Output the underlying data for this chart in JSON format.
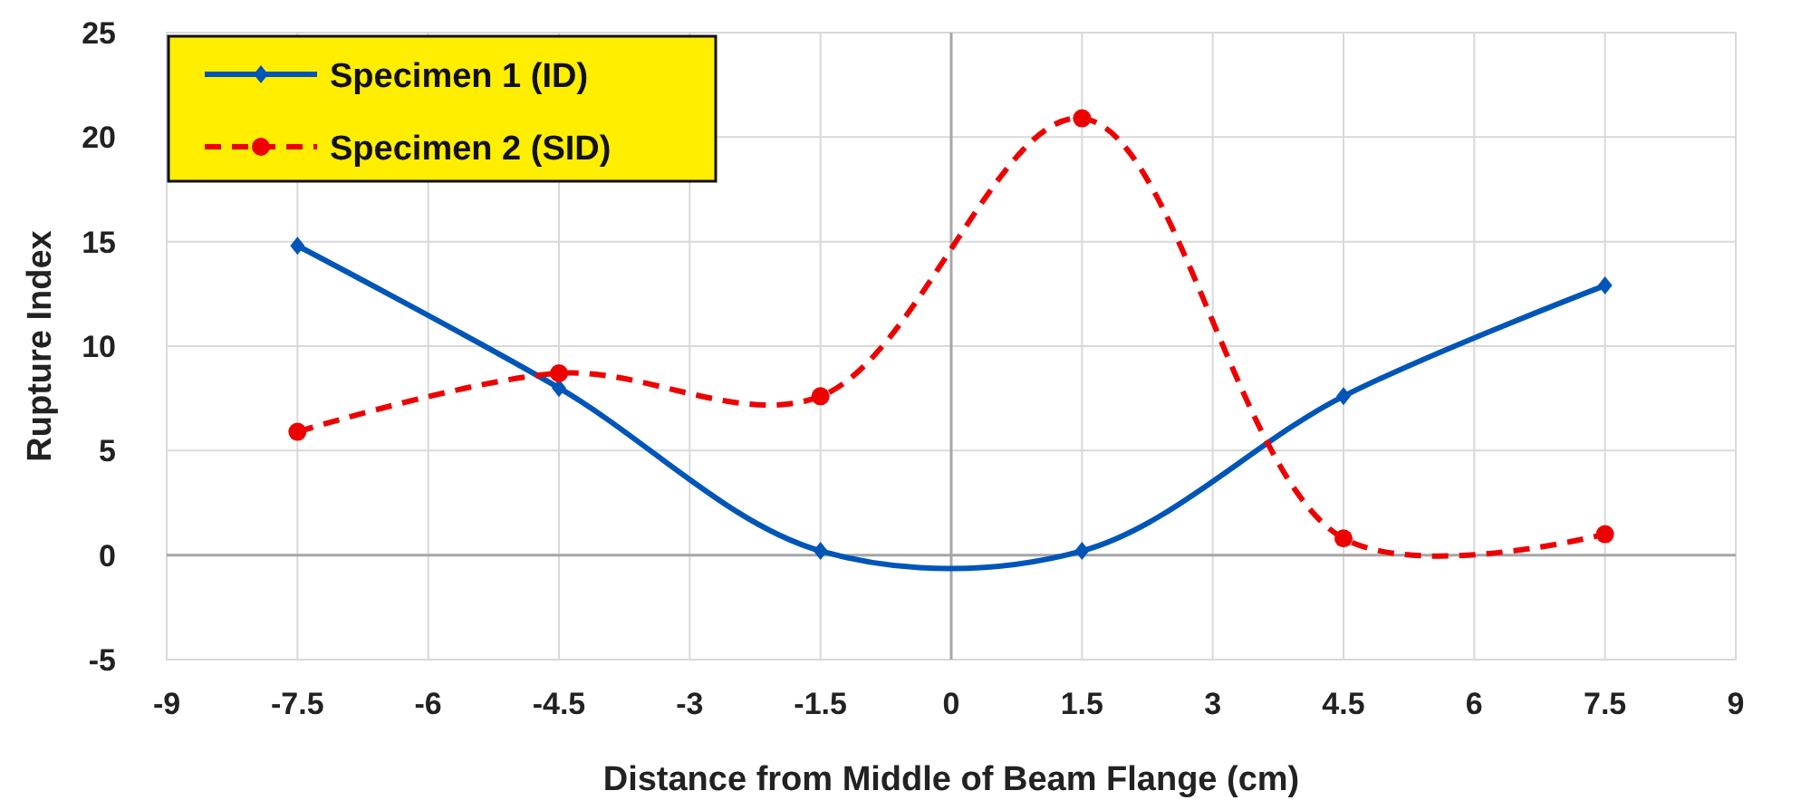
{
  "chart_data": {
    "type": "line",
    "xlabel": "Distance from Middle of Beam Flange (cm)",
    "ylabel": "Rupture Index",
    "x": [
      -7.5,
      -4.5,
      -1.5,
      1.5,
      4.5,
      7.5
    ],
    "series": [
      {
        "name": "Specimen 1 (ID)",
        "color": "#0055b8",
        "values": [
          14.8,
          8.0,
          0.2,
          0.2,
          7.6,
          12.9
        ],
        "marker": "diamond",
        "line_style": "solid"
      },
      {
        "name": "Specimen 2 (SID)",
        "color": "#ee0000",
        "values": [
          5.9,
          8.7,
          7.6,
          20.9,
          0.8,
          1.0
        ],
        "marker": "circle",
        "line_style": "dashed"
      }
    ],
    "xlim": [
      -9,
      9
    ],
    "xticks": [
      -9,
      -7.5,
      -6,
      -4.5,
      -3,
      -1.5,
      0,
      1.5,
      3,
      4.5,
      6,
      7.5,
      9
    ],
    "ylim": [
      -5,
      25
    ],
    "yticks": [
      -5,
      0,
      5,
      10,
      15,
      20,
      25
    ],
    "grid": true,
    "legend": "top left"
  }
}
